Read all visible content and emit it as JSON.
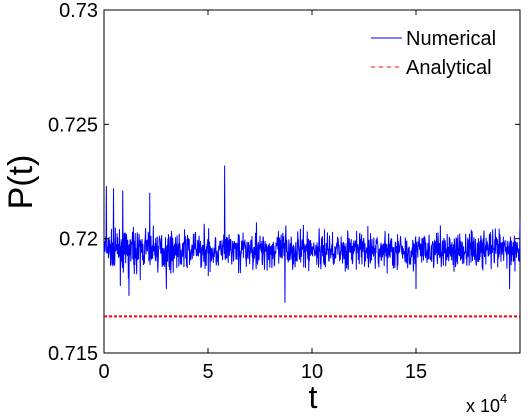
{
  "chart_data": {
    "type": "line",
    "xlabel": "t",
    "ylabel": "P(t)",
    "x_multiplier_label": "x 10",
    "x_multiplier_exp": "4",
    "xlim": [
      0,
      200000
    ],
    "ylim": [
      0.715,
      0.73
    ],
    "xticks": [
      0,
      50000,
      100000,
      150000
    ],
    "xtick_labels": [
      "0",
      "5",
      "10",
      "15"
    ],
    "yticks": [
      0.715,
      0.72,
      0.725,
      0.73
    ],
    "ytick_labels": [
      "0.715",
      "0.72",
      "0.725",
      "0.73"
    ],
    "grid": false,
    "legend_position": "top-right",
    "series": [
      {
        "name": "Numerical",
        "color": "#0000ff",
        "style": "solid",
        "mean": 0.7195,
        "fluctuation_band": [
          0.7183,
          0.7207
        ],
        "spikes": [
          {
            "x": 1200,
            "y": 0.7223
          },
          {
            "x": 4500,
            "y": 0.7222
          },
          {
            "x": 9000,
            "y": 0.7221
          },
          {
            "x": 22000,
            "y": 0.722
          },
          {
            "x": 58000,
            "y": 0.7232
          },
          {
            "x": 87000,
            "y": 0.7172
          },
          {
            "x": 12000,
            "y": 0.7175
          },
          {
            "x": 30000,
            "y": 0.7178
          },
          {
            "x": 150000,
            "y": 0.7178
          },
          {
            "x": 195000,
            "y": 0.7178
          }
        ]
      },
      {
        "name": "Analytical",
        "color": "#ff0000",
        "style": "dashed",
        "value": 0.7166
      }
    ]
  }
}
